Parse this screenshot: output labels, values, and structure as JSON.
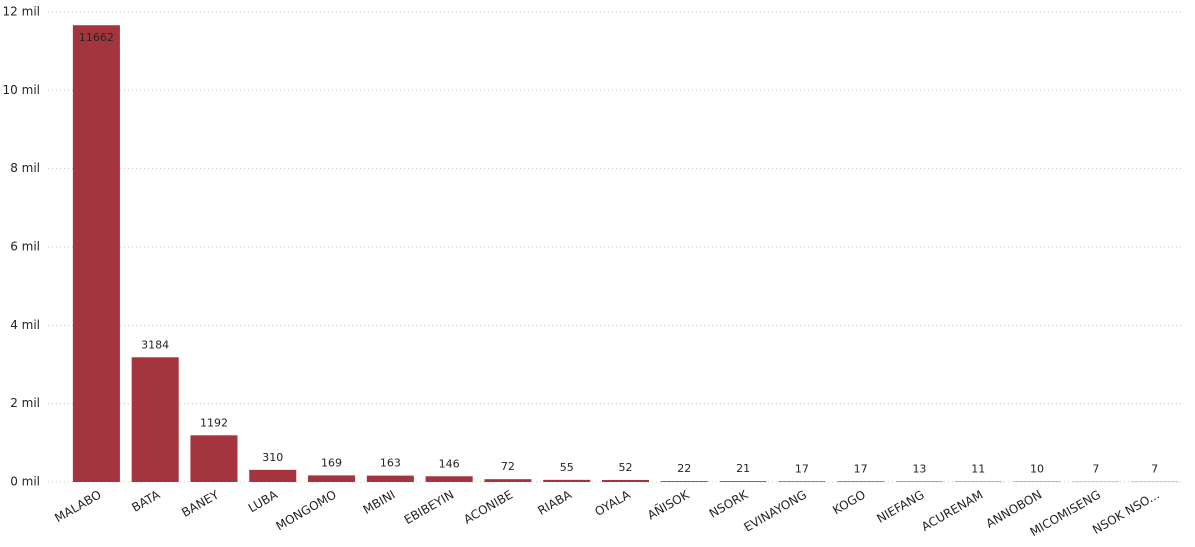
{
  "chart_data": {
    "type": "bar",
    "categories": [
      "MALABO",
      "BATA",
      "BANEY",
      "LUBA",
      "MONGOMO",
      "MBINI",
      "EBIBEYIN",
      "ACONIBE",
      "RIABA",
      "OYALA",
      "AÑISOK",
      "NSORK",
      "EVINAYONG",
      "KOGO",
      "NIEFANG",
      "ACURENAM",
      "ANNOBON",
      "MICOMISENG",
      "NSOK NSO..."
    ],
    "values": [
      11662,
      3184,
      1192,
      310,
      169,
      163,
      146,
      72,
      55,
      52,
      22,
      21,
      17,
      17,
      13,
      11,
      10,
      7,
      7
    ],
    "color": "#a4343e",
    "ylim": [
      0,
      12000
    ],
    "yticks": [
      {
        "value": 0,
        "label": "0 mil"
      },
      {
        "value": 2000,
        "label": "2 mil"
      },
      {
        "value": 4000,
        "label": "4 mil"
      },
      {
        "value": 6000,
        "label": "6 mil"
      },
      {
        "value": 8000,
        "label": "8 mil"
      },
      {
        "value": 10000,
        "label": "10 mil"
      },
      {
        "value": 12000,
        "label": "12 mil"
      }
    ],
    "grid": true
  }
}
